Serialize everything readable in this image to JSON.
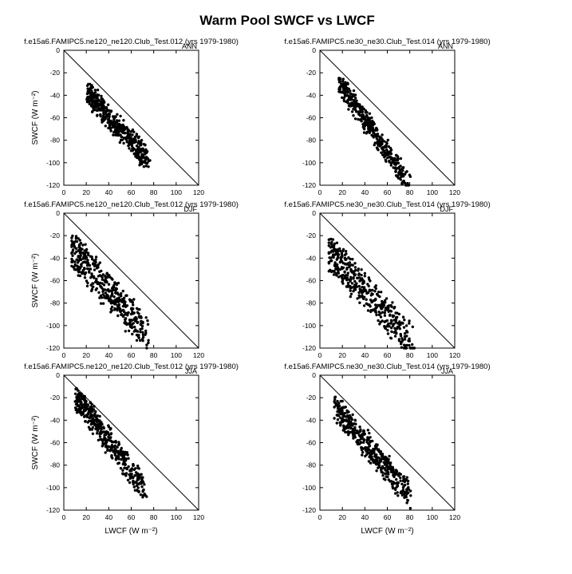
{
  "title": "Warm Pool SWCF vs LWCF",
  "chart_data": [
    {
      "type": "scatter",
      "title": "f.e15a6.FAMIPC5.ne120_ne120.Club_Test.012 (yrs 1979-1980)",
      "season": "ANN",
      "xlabel": "",
      "ylabel": "SWCF (W m⁻²)",
      "xlim": [
        0,
        120
      ],
      "ylim": [
        -120,
        0
      ],
      "xticks": [
        0,
        20,
        40,
        60,
        80,
        100,
        120
      ],
      "yticks": [
        0,
        -20,
        -40,
        -60,
        -80,
        -100,
        -120
      ],
      "reference_line": [
        [
          0,
          0
        ],
        [
          120,
          -120
        ]
      ],
      "cloud": {
        "x0": 22,
        "y0": -37,
        "x1": 75,
        "y1": -95,
        "xmin": 20,
        "xmax": 88,
        "spread": 9
      }
    },
    {
      "type": "scatter",
      "title": "f.e15a6.FAMIPC5.ne30_ne30.Club_Test.014 (yrs 1979-1980)",
      "season": "ANN",
      "xlabel": "",
      "ylabel": "",
      "xlim": [
        0,
        120
      ],
      "ylim": [
        -120,
        0
      ],
      "xticks": [
        0,
        20,
        40,
        60,
        80,
        100,
        120
      ],
      "yticks": [
        0,
        -20,
        -40,
        -60,
        -80,
        -100,
        -120
      ],
      "reference_line": [
        [
          0,
          0
        ],
        [
          120,
          -120
        ]
      ],
      "cloud": {
        "x0": 18,
        "y0": -28,
        "x1": 78,
        "y1": -115,
        "xmin": 17,
        "xmax": 84,
        "spread": 7
      }
    },
    {
      "type": "scatter",
      "title": "f.e15a6.FAMIPC5.ne120_ne120.Club_Test.012 (yrs 1979-1980)",
      "season": "DJF",
      "xlabel": "",
      "ylabel": "SWCF (W m⁻²)",
      "xlim": [
        0,
        120
      ],
      "ylim": [
        -120,
        0
      ],
      "xticks": [
        0,
        20,
        40,
        60,
        80,
        100,
        120
      ],
      "yticks": [
        0,
        -20,
        -40,
        -60,
        -80,
        -100,
        -120
      ],
      "reference_line": [
        [
          0,
          0
        ],
        [
          120,
          -120
        ]
      ],
      "cloud": {
        "x0": 8,
        "y0": -30,
        "x1": 75,
        "y1": -105,
        "xmin": 7,
        "xmax": 95,
        "spread": 14
      }
    },
    {
      "type": "scatter",
      "title": "f.e15a6.FAMIPC5.ne30_ne30.Club_Test.014 (yrs 1979-1980)",
      "season": "DJF",
      "xlabel": "",
      "ylabel": "",
      "xlim": [
        0,
        120
      ],
      "ylim": [
        -120,
        0
      ],
      "xticks": [
        0,
        20,
        40,
        60,
        80,
        100,
        120
      ],
      "yticks": [
        0,
        -20,
        -40,
        -60,
        -80,
        -100,
        -120
      ],
      "reference_line": [
        [
          0,
          0
        ],
        [
          120,
          -120
        ]
      ],
      "cloud": {
        "x0": 9,
        "y0": -32,
        "x1": 82,
        "y1": -112,
        "xmin": 8,
        "xmax": 85,
        "spread": 14
      }
    },
    {
      "type": "scatter",
      "title": "f.e15a6.FAMIPC5.ne120_ne120.Club_Test.012 (yrs 1979-1980)",
      "season": "JJA",
      "xlabel": "LWCF (W m⁻²)",
      "ylabel": "SWCF (W m⁻²)",
      "xlim": [
        0,
        120
      ],
      "ylim": [
        -120,
        0
      ],
      "xticks": [
        0,
        20,
        40,
        60,
        80,
        100,
        120
      ],
      "yticks": [
        0,
        -20,
        -40,
        -60,
        -80,
        -100,
        -120
      ],
      "reference_line": [
        [
          0,
          0
        ],
        [
          120,
          -120
        ]
      ],
      "cloud": {
        "x0": 12,
        "y0": -17,
        "x1": 72,
        "y1": -100,
        "xmin": 10,
        "xmax": 77,
        "spread": 10
      }
    },
    {
      "type": "scatter",
      "title": "f.e15a6.FAMIPC5.ne30_ne30.Club_Test.014 (yrs 1979-1980)",
      "season": "JJA",
      "xlabel": "LWCF (W m⁻²)",
      "ylabel": "",
      "xlim": [
        0,
        120
      ],
      "ylim": [
        -120,
        0
      ],
      "xticks": [
        0,
        20,
        40,
        60,
        80,
        100,
        120
      ],
      "yticks": [
        0,
        -20,
        -40,
        -60,
        -80,
        -100,
        -120
      ],
      "reference_line": [
        [
          0,
          0
        ],
        [
          120,
          -120
        ]
      ],
      "cloud": {
        "x0": 15,
        "y0": -27,
        "x1": 80,
        "y1": -105,
        "xmin": 9,
        "xmax": 87,
        "spread": 10
      }
    }
  ]
}
